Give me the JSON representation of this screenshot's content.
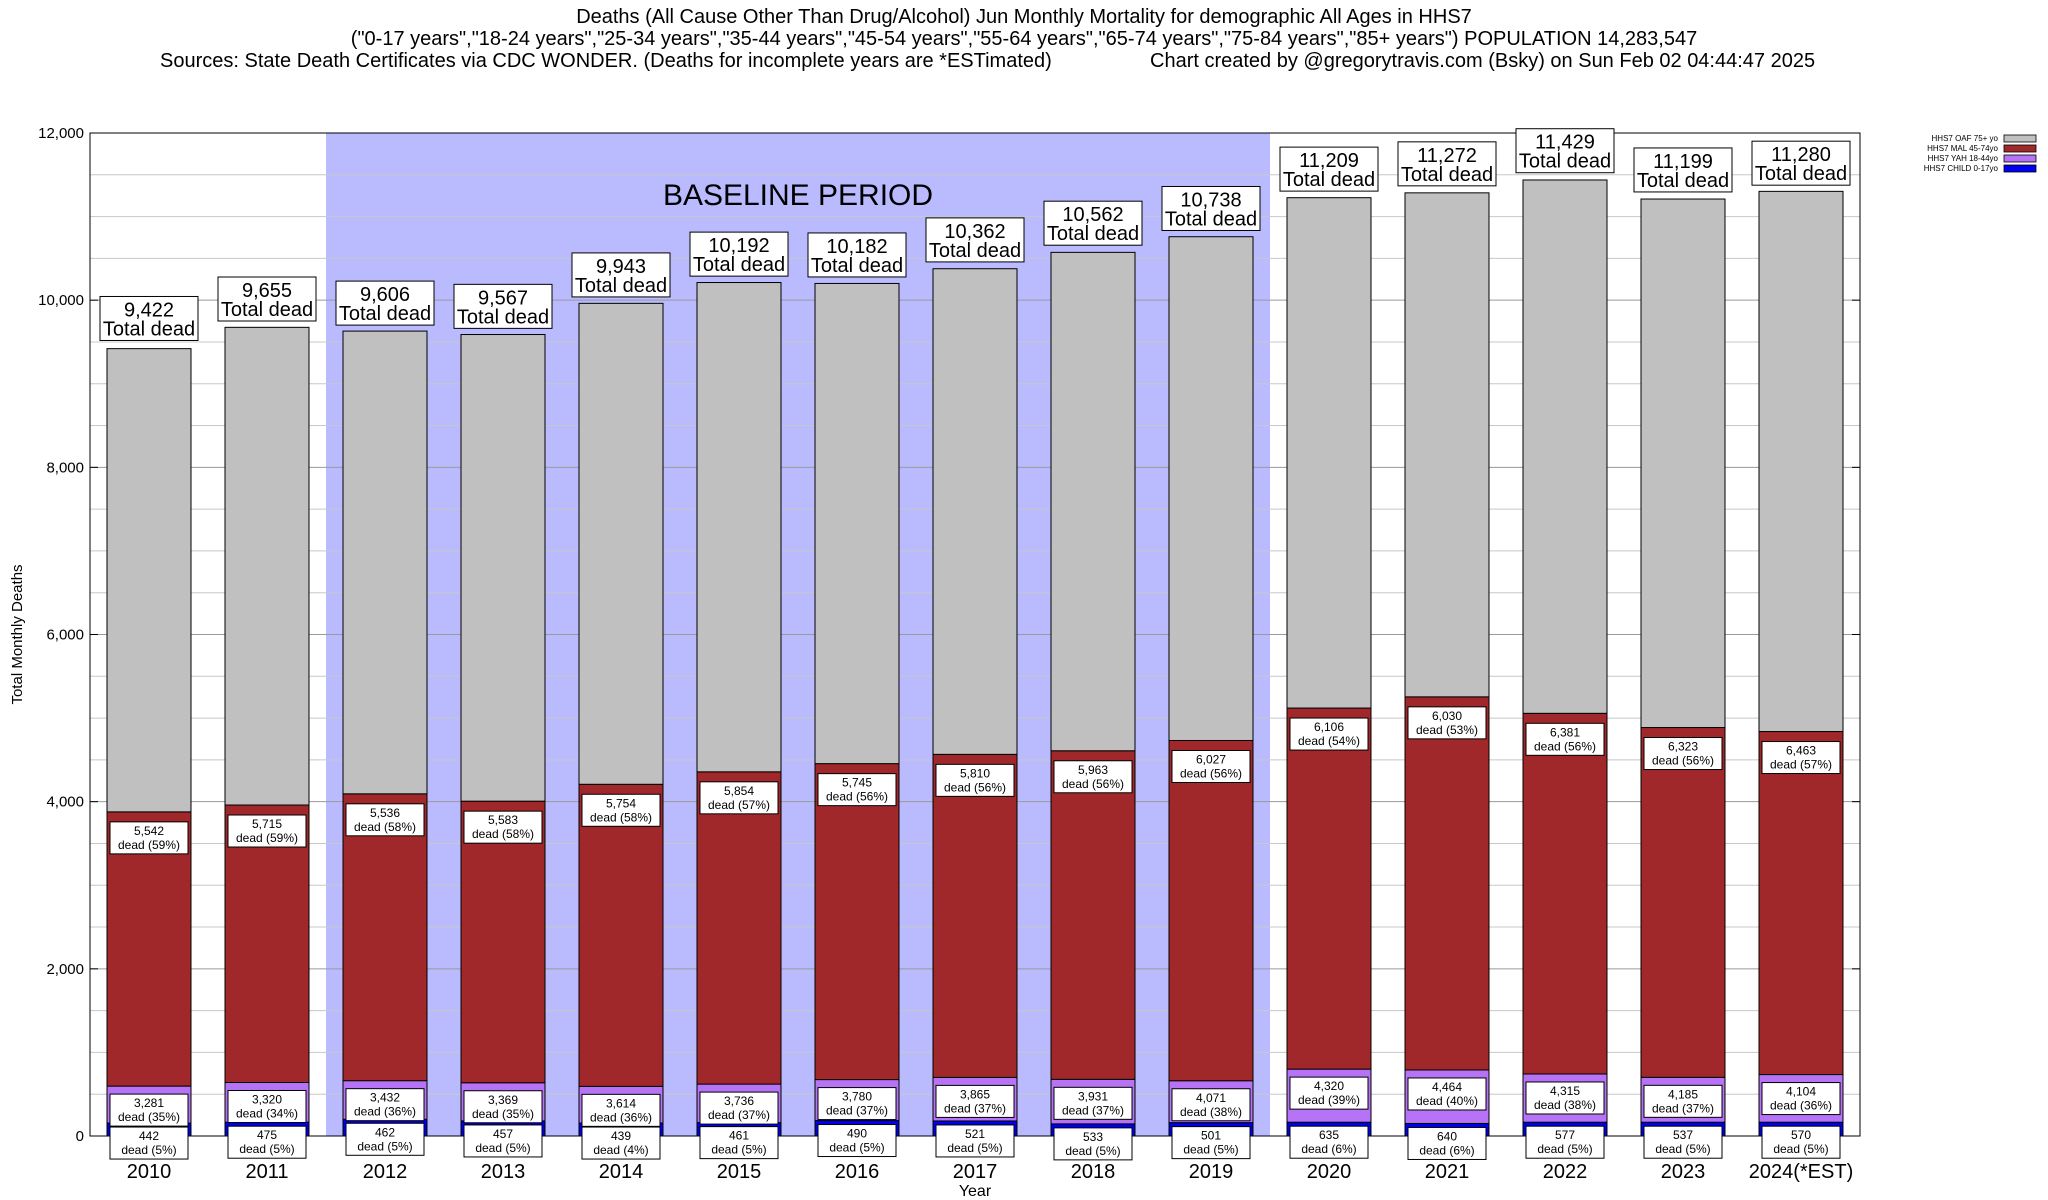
{
  "title_line1": "Deaths (All Cause Other Than Drug/Alcohol) Jun Monthly Mortality for demographic All Ages in HHS7",
  "title_line2": "(\"0-17 years\",\"18-24 years\",\"25-34 years\",\"35-44 years\",\"45-54 years\",\"55-64 years\",\"65-74 years\",\"75-84 years\",\"85+ years\") POPULATION 14,283,547",
  "title_line3_left": "Sources: State Death Certificates via CDC WONDER. (Deaths for incomplete years are *ESTimated)",
  "title_line3_right": "Chart created by @gregorytravis.com (Bsky) on Sun Feb 02 04:44:47 2025",
  "chart_data": {
    "type": "bar",
    "stacked": true,
    "xlabel": "Year",
    "ylabel": "Total Monthly Deaths",
    "ylim": [
      0,
      12000
    ],
    "yticks": [
      0,
      2000,
      4000,
      6000,
      8000,
      10000,
      12000
    ],
    "ytick_labels": [
      "0",
      "2,000",
      "4,000",
      "6,000",
      "8,000",
      "10,000",
      "12,000"
    ],
    "grid": true,
    "legend_position": "top-right",
    "baseline_label": "BASELINE PERIOD",
    "baseline_range": [
      "2012",
      "2019"
    ],
    "total_label": "Total dead",
    "segment_label_word": "dead",
    "categories": [
      "2010",
      "2011",
      "2012",
      "2013",
      "2014",
      "2015",
      "2016",
      "2017",
      "2018",
      "2019",
      "2020",
      "2021",
      "2022",
      "2023",
      "2024(*EST)"
    ],
    "totals": [
      9422,
      9655,
      9606,
      9567,
      9943,
      10192,
      10182,
      10362,
      10562,
      10738,
      11209,
      11272,
      11429,
      11199,
      11280
    ],
    "series": [
      {
        "name": "HHS7 CHILD 0-17yo",
        "color": "#0000ee",
        "values": [
          155,
          165,
          200,
          180,
          155,
          160,
          185,
          180,
          145,
          160,
          165,
          150,
          165,
          165,
          165
        ]
      },
      {
        "name": "HHS7 YAH 18-44yo",
        "color": "#b673f5",
        "values": [
          442,
          475,
          462,
          457,
          439,
          461,
          490,
          521,
          533,
          501,
          635,
          640,
          577,
          537,
          570
        ],
        "pct": [
          5,
          5,
          5,
          5,
          4,
          5,
          5,
          5,
          5,
          5,
          6,
          6,
          5,
          5,
          5
        ]
      },
      {
        "name": "HHS7 MAL 45-74yo",
        "color": "#a1282a",
        "values": [
          3281,
          3320,
          3432,
          3369,
          3614,
          3736,
          3780,
          3865,
          3931,
          4071,
          4320,
          4464,
          4315,
          4185,
          4104
        ],
        "pct": [
          35,
          34,
          36,
          35,
          36,
          37,
          37,
          37,
          37,
          38,
          39,
          40,
          38,
          37,
          36
        ]
      },
      {
        "name": "HHS7 OAF 75+ yo",
        "color": "#c0c0c0",
        "values": [
          5542,
          5715,
          5536,
          5583,
          5754,
          5854,
          5745,
          5810,
          5963,
          6027,
          6106,
          6030,
          6381,
          6323,
          6463
        ],
        "pct": [
          59,
          59,
          58,
          58,
          58,
          57,
          56,
          56,
          56,
          56,
          54,
          53,
          56,
          56,
          57
        ]
      }
    ]
  }
}
